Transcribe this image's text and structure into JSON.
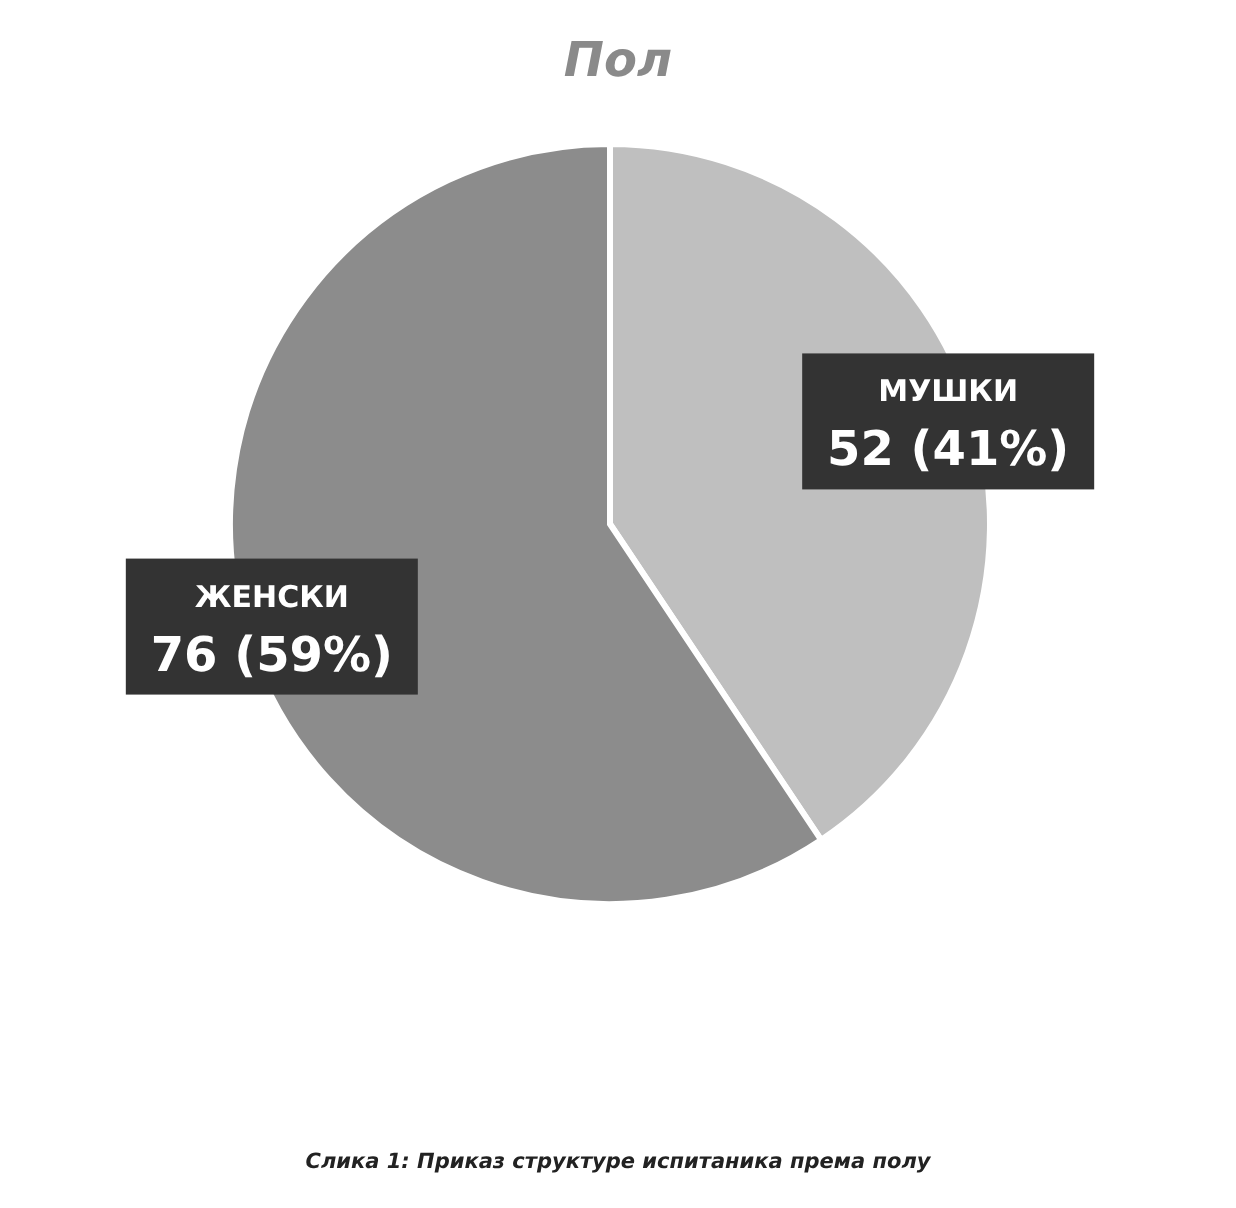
{
  "chart_data": {
    "type": "pie",
    "title": "Пол",
    "categories": [
      "МУШКИ",
      "ЖЕНСКИ"
    ],
    "values": [
      52,
      76
    ],
    "colors": [
      "#bfbfbf",
      "#8c8c8c"
    ],
    "value_labels": [
      "52 (41%)",
      "76 (59%)"
    ],
    "annotations": [
      "Слика 1: Приказ структуре испитаника према полу"
    ]
  }
}
